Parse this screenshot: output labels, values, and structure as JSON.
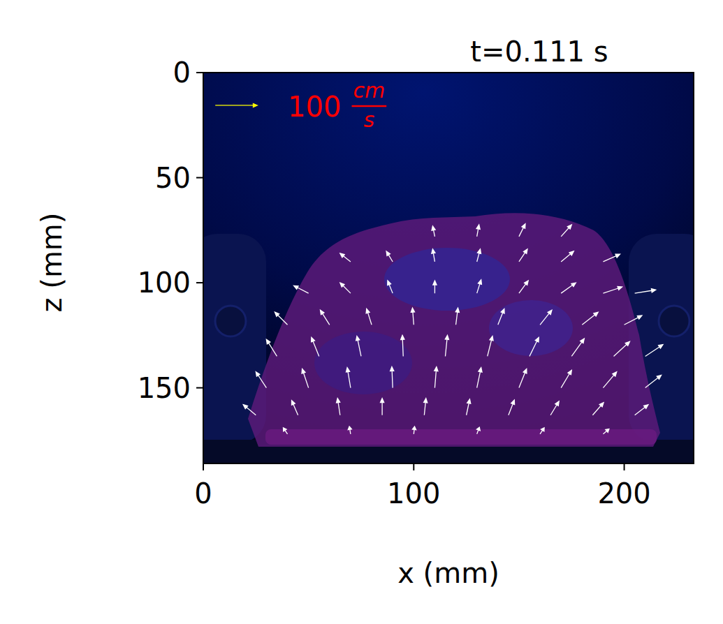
{
  "chart_data": {
    "type": "quiver",
    "title": "t=0.111 s",
    "x_label": "x (mm)",
    "y_label": "z (mm)",
    "xlim": [
      0,
      233
    ],
    "ylim": [
      186,
      0
    ],
    "xticks": [
      0,
      100,
      200
    ],
    "yticks": [
      0,
      50,
      100,
      150
    ],
    "color": "#ffffff",
    "quiver_key": {
      "value": 100,
      "unit_numerator": "cm",
      "unit_denominator": "s"
    },
    "x": [
      110,
      130,
      150,
      170,
      70,
      90,
      110,
      130,
      150,
      170,
      190,
      50,
      70,
      90,
      110,
      130,
      150,
      170,
      190,
      205,
      40,
      60,
      80,
      100,
      120,
      140,
      160,
      180,
      200,
      35,
      55,
      75,
      95,
      115,
      135,
      155,
      175,
      195,
      210,
      30,
      50,
      70,
      90,
      110,
      130,
      150,
      170,
      190,
      210,
      25,
      45,
      65,
      85,
      105,
      125,
      145,
      165,
      185,
      205,
      40,
      70,
      100,
      130,
      160,
      190
    ],
    "y": [
      78,
      78,
      78,
      78,
      90,
      90,
      90,
      90,
      90,
      90,
      90,
      105,
      105,
      105,
      105,
      105,
      105,
      105,
      105,
      105,
      120,
      120,
      120,
      120,
      120,
      120,
      120,
      120,
      120,
      135,
      135,
      135,
      135,
      135,
      135,
      135,
      135,
      135,
      135,
      150,
      150,
      150,
      150,
      150,
      150,
      150,
      150,
      150,
      150,
      163,
      163,
      163,
      163,
      163,
      163,
      163,
      163,
      163,
      163,
      172,
      172,
      172,
      172,
      172,
      172
    ],
    "u": [
      -5,
      5,
      15,
      25,
      -25,
      -15,
      -5,
      8,
      20,
      30,
      40,
      -35,
      -25,
      -12,
      0,
      10,
      22,
      35,
      45,
      50,
      -30,
      -22,
      -12,
      -3,
      5,
      15,
      28,
      38,
      42,
      -25,
      -18,
      -10,
      -2,
      5,
      12,
      22,
      30,
      38,
      42,
      -25,
      -15,
      -8,
      -2,
      4,
      10,
      18,
      25,
      32,
      38,
      -30,
      -15,
      -6,
      0,
      4,
      8,
      14,
      20,
      26,
      32,
      -10,
      -3,
      2,
      6,
      10,
      14
    ],
    "v": [
      -25,
      -28,
      -30,
      -28,
      -20,
      -25,
      -30,
      -30,
      -30,
      -25,
      -18,
      -18,
      -25,
      -30,
      -30,
      -32,
      -30,
      -25,
      -15,
      -8,
      -30,
      -35,
      -38,
      -40,
      -40,
      -38,
      -35,
      -30,
      -22,
      -40,
      -45,
      -48,
      -50,
      -50,
      -48,
      -45,
      -42,
      -35,
      -28,
      -38,
      -45,
      -48,
      -50,
      -50,
      -48,
      -45,
      -42,
      -38,
      -30,
      -25,
      -35,
      -40,
      -40,
      -40,
      -38,
      -36,
      -33,
      -30,
      -25,
      -15,
      -18,
      -18,
      -16,
      -15,
      -12
    ]
  }
}
